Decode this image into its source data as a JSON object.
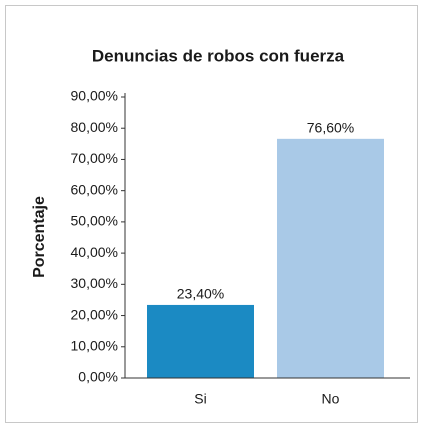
{
  "chart_data": {
    "type": "bar",
    "title": "Denuncias de robos con fuerza",
    "y_label": "Porcentaje",
    "categories": [
      "Si",
      "No"
    ],
    "values": [
      23.4,
      76.6
    ],
    "value_labels": [
      "23,40%",
      "76,60%"
    ],
    "colors": [
      "#1b8ac3",
      "#a9c9e7"
    ],
    "ylim": [
      0,
      90
    ],
    "yticks": [
      {
        "value": 0,
        "label": "0,00%"
      },
      {
        "value": 10,
        "label": "10,00%"
      },
      {
        "value": 20,
        "label": "20,00%"
      },
      {
        "value": 30,
        "label": "30,00%"
      },
      {
        "value": 40,
        "label": "40,00%"
      },
      {
        "value": 50,
        "label": "50,00%"
      },
      {
        "value": 60,
        "label": "60,00%"
      },
      {
        "value": 70,
        "label": "70,00%"
      },
      {
        "value": 80,
        "label": "80,00%"
      },
      {
        "value": 90,
        "label": "90,00%"
      }
    ]
  }
}
